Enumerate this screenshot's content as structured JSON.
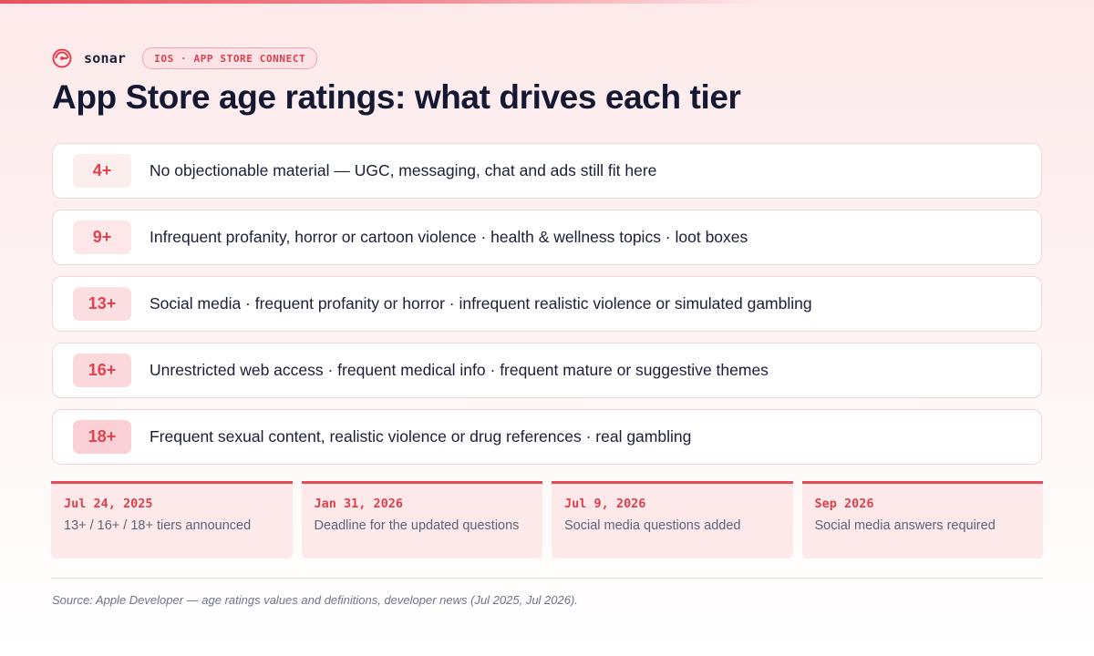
{
  "brand": {
    "name": "sonar",
    "pill": "IOS · APP STORE CONNECT",
    "accent": "#e0424f"
  },
  "title": "App Store age ratings: what drives each tier",
  "tiers": [
    {
      "label": "4+",
      "text": "No objectionable material — UGC, messaging, chat and ads still fit here"
    },
    {
      "label": "9+",
      "text": "Infrequent profanity, horror or cartoon violence · health & wellness topics · loot boxes"
    },
    {
      "label": "13+",
      "text": "Social media · frequent profanity or horror · infrequent realistic violence or simulated gambling"
    },
    {
      "label": "16+",
      "text": "Unrestricted web access · frequent medical info · frequent mature or suggestive themes"
    },
    {
      "label": "18+",
      "text": "Frequent sexual content, realistic violence or drug references · real gambling"
    }
  ],
  "timeline": [
    {
      "date": "Jul 24, 2025",
      "text": "13+ / 16+ / 18+ tiers announced"
    },
    {
      "date": "Jan 31, 2026",
      "text": "Deadline for the updated questions"
    },
    {
      "date": "Jul 9, 2026",
      "text": "Social media questions added"
    },
    {
      "date": "Sep 2026",
      "text": "Social media answers required"
    }
  ],
  "source": "Source: Apple Developer — age ratings values and definitions, developer news (Jul 2025, Jul 2026).",
  "icons": {
    "logo": "sonar-logo-icon"
  }
}
